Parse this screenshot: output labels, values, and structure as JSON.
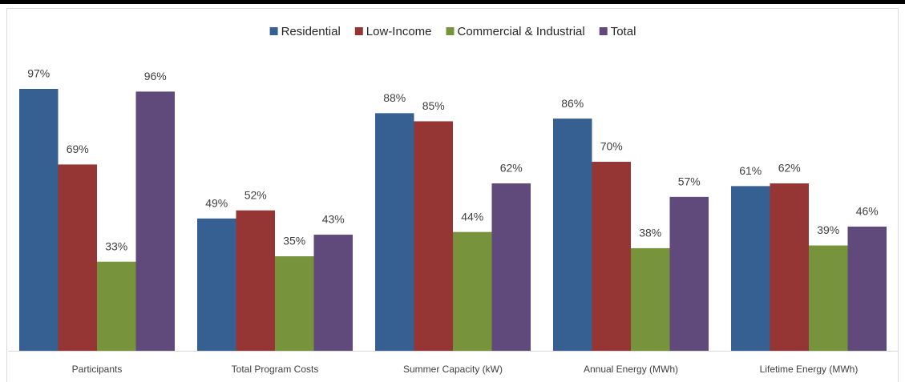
{
  "chart_data": {
    "type": "bar",
    "categories": [
      "Participants",
      "Total Program Costs",
      "Summer Capacity (kW)",
      "Annual Energy (MWh)",
      "Lifetime Energy (MWh)"
    ],
    "series": [
      {
        "name": "Residential",
        "color": "#366092",
        "values": [
          97,
          49,
          88,
          86,
          61
        ],
        "value_labels": [
          "97%",
          "49%",
          "88%",
          "86%",
          "61%"
        ]
      },
      {
        "name": "Low-Income",
        "color": "#963634",
        "values": [
          69,
          52,
          85,
          70,
          62
        ],
        "value_labels": [
          "69%",
          "52%",
          "85%",
          "70%",
          "62%"
        ]
      },
      {
        "name": "Commercial & Industrial",
        "color": "#77933c",
        "values": [
          33,
          35,
          44,
          38,
          39
        ],
        "value_labels": [
          "33%",
          "35%",
          "44%",
          "38%",
          "39%"
        ]
      },
      {
        "name": "Total",
        "color": "#604a7b",
        "values": [
          96,
          43,
          62,
          57,
          46
        ],
        "value_labels": [
          "96%",
          "43%",
          "62%",
          "57%",
          "46%"
        ]
      }
    ],
    "legend": "top"
  }
}
